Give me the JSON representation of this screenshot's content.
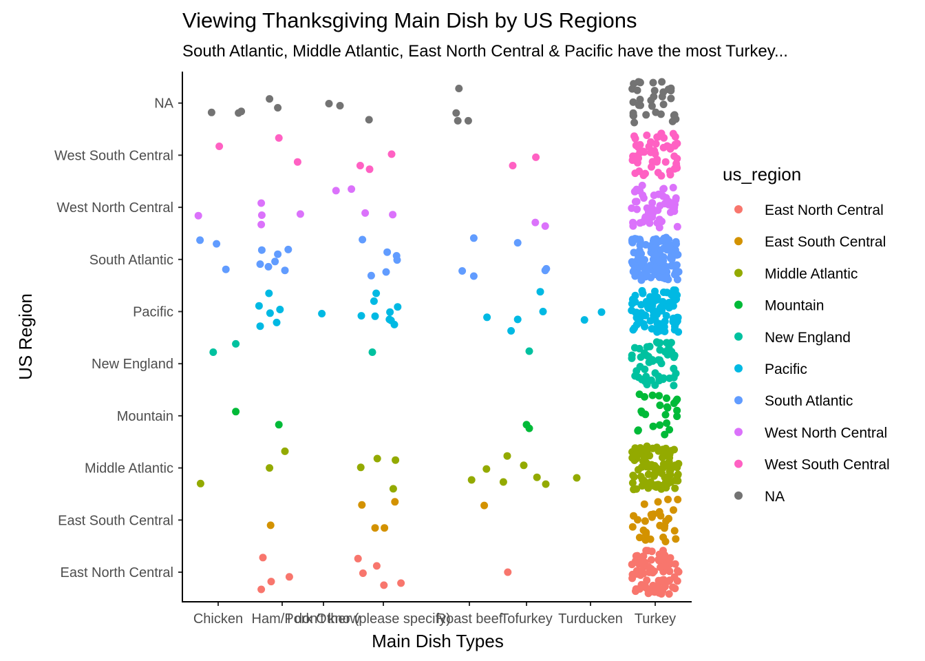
{
  "chart_data": {
    "type": "scatter",
    "title": "Viewing Thanksgiving Main Dish by US Regions",
    "subtitle": "South Atlantic, Middle Atlantic, East North Central & Pacific have the most Turkey...",
    "xlabel": "Main Dish Types",
    "ylabel": "US Region",
    "categories": [
      "Chicken",
      "Ham/Pork",
      "I don't know",
      "Other (please specify)",
      "Roast beef",
      "Tofurkey",
      "Turducken",
      "Turkey"
    ],
    "regions": [
      "East North Central",
      "East South Central",
      "Middle Atlantic",
      "Mountain",
      "New England",
      "Pacific",
      "South Atlantic",
      "West North Central",
      "West South Central",
      "NA"
    ],
    "legend": {
      "title": "us_region",
      "position": "right",
      "entries": [
        "East North Central",
        "East South Central",
        "Middle Atlantic",
        "Mountain",
        "New England",
        "Pacific",
        "South Atlantic",
        "West North Central",
        "West South Central",
        "NA"
      ]
    },
    "colors": {
      "East North Central": "#F8766D",
      "East South Central": "#D39200",
      "Middle Atlantic": "#93AA00",
      "Mountain": "#00BA38",
      "New England": "#00C19F",
      "Pacific": "#00B9E3",
      "South Atlantic": "#619CFF",
      "West North Central": "#DB72FB",
      "West South Central": "#FF61C3",
      "NA": "#737373"
    },
    "jitter": true,
    "grid": false,
    "points": [
      {
        "d": "Chicken",
        "r": "NA",
        "x": -0.12,
        "y": 0.18
      },
      {
        "d": "Chicken",
        "r": "NA",
        "x": 0.37,
        "y": 0.19
      },
      {
        "d": "Chicken",
        "r": "NA",
        "x": 0.42,
        "y": 0.16
      },
      {
        "d": "Ham/Pork",
        "r": "NA",
        "x": -0.23,
        "y": -0.08
      },
      {
        "d": "Ham/Pork",
        "r": "NA",
        "x": -0.08,
        "y": 0.09
      },
      {
        "d": "I don't know",
        "r": "NA",
        "x": 0.1,
        "y": 0.01
      },
      {
        "d": "I don't know",
        "r": "NA",
        "x": 0.3,
        "y": 0.05
      },
      {
        "d": "Other (please specify)",
        "r": "NA",
        "x": -0.26,
        "y": 0.32
      },
      {
        "d": "Roast beef",
        "r": "NA",
        "x": -0.19,
        "y": -0.28
      },
      {
        "d": "Roast beef",
        "r": "NA",
        "x": -0.24,
        "y": 0.19
      },
      {
        "d": "Roast beef",
        "r": "NA",
        "x": -0.21,
        "y": 0.34
      },
      {
        "d": "Roast beef",
        "r": "NA",
        "x": -0.02,
        "y": 0.34
      },
      {
        "d": "Chicken",
        "r": "West South Central",
        "x": 0.02,
        "y": -0.17
      },
      {
        "d": "Ham/Pork",
        "r": "West South Central",
        "x": -0.06,
        "y": -0.33
      },
      {
        "d": "Ham/Pork",
        "r": "West South Central",
        "x": 0.28,
        "y": 0.13
      },
      {
        "d": "Other (please specify)",
        "r": "West South Central",
        "x": -0.42,
        "y": 0.2
      },
      {
        "d": "Other (please specify)",
        "r": "West South Central",
        "x": -0.25,
        "y": 0.27
      },
      {
        "d": "Other (please specify)",
        "r": "West South Central",
        "x": 0.15,
        "y": -0.02
      },
      {
        "d": "Tofurkey",
        "r": "West South Central",
        "x": -0.25,
        "y": 0.2
      },
      {
        "d": "Tofurkey",
        "r": "West South Central",
        "x": 0.17,
        "y": 0.04
      },
      {
        "d": "Chicken",
        "r": "West North Central",
        "x": -0.36,
        "y": 0.16
      },
      {
        "d": "Ham/Pork",
        "r": "West North Central",
        "x": -0.38,
        "y": -0.08
      },
      {
        "d": "Ham/Pork",
        "r": "West North Central",
        "x": -0.37,
        "y": 0.15
      },
      {
        "d": "Ham/Pork",
        "r": "West North Central",
        "x": -0.38,
        "y": 0.33
      },
      {
        "d": "Ham/Pork",
        "r": "West North Central",
        "x": 0.33,
        "y": 0.13
      },
      {
        "d": "Other (please specify)",
        "r": "West North Central",
        "x": -0.86,
        "y": -0.32
      },
      {
        "d": "Other (please specify)",
        "r": "West North Central",
        "x": -0.58,
        "y": -0.35
      },
      {
        "d": "Other (please specify)",
        "r": "West North Central",
        "x": -0.33,
        "y": 0.11
      },
      {
        "d": "Other (please specify)",
        "r": "West North Central",
        "x": 0.17,
        "y": 0.14
      },
      {
        "d": "Tofurkey",
        "r": "West North Central",
        "x": 0.16,
        "y": 0.29
      },
      {
        "d": "Tofurkey",
        "r": "West North Central",
        "x": 0.34,
        "y": 0.36
      },
      {
        "d": "Chicken",
        "r": "South Atlantic",
        "x": -0.33,
        "y": -0.37
      },
      {
        "d": "Chicken",
        "r": "South Atlantic",
        "x": -0.03,
        "y": -0.3
      },
      {
        "d": "Chicken",
        "r": "South Atlantic",
        "x": 0.14,
        "y": 0.19
      },
      {
        "d": "Ham/Pork",
        "r": "South Atlantic",
        "x": -0.37,
        "y": -0.18
      },
      {
        "d": "Ham/Pork",
        "r": "South Atlantic",
        "x": -0.4,
        "y": 0.09
      },
      {
        "d": "Ham/Pork",
        "r": "South Atlantic",
        "x": -0.25,
        "y": 0.14
      },
      {
        "d": "Ham/Pork",
        "r": "South Atlantic",
        "x": -0.08,
        "y": -0.1
      },
      {
        "d": "Ham/Pork",
        "r": "South Atlantic",
        "x": -0.13,
        "y": 0.04
      },
      {
        "d": "Ham/Pork",
        "r": "South Atlantic",
        "x": 0.11,
        "y": -0.19
      },
      {
        "d": "Ham/Pork",
        "r": "South Atlantic",
        "x": 0.05,
        "y": 0.21
      },
      {
        "d": "Other (please specify)",
        "r": "South Atlantic",
        "x": -0.38,
        "y": -0.38
      },
      {
        "d": "Other (please specify)",
        "r": "South Atlantic",
        "x": -0.22,
        "y": 0.31
      },
      {
        "d": "Other (please specify)",
        "r": "South Atlantic",
        "x": 0.07,
        "y": -0.14
      },
      {
        "d": "Other (please specify)",
        "r": "South Atlantic",
        "x": 0.24,
        "y": -0.07
      },
      {
        "d": "Other (please specify)",
        "r": "South Atlantic",
        "x": 0.25,
        "y": 0.01
      },
      {
        "d": "Other (please specify)",
        "r": "South Atlantic",
        "x": 0.05,
        "y": 0.24
      },
      {
        "d": "Roast beef",
        "r": "South Atlantic",
        "x": -0.13,
        "y": 0.22
      },
      {
        "d": "Roast beef",
        "r": "South Atlantic",
        "x": 0.08,
        "y": -0.41
      },
      {
        "d": "Roast beef",
        "r": "South Atlantic",
        "x": 0.08,
        "y": 0.32
      },
      {
        "d": "Tofurkey",
        "r": "South Atlantic",
        "x": -0.16,
        "y": -0.32
      },
      {
        "d": "Tofurkey",
        "r": "South Atlantic",
        "x": 0.34,
        "y": 0.21
      },
      {
        "d": "Tofurkey",
        "r": "South Atlantic",
        "x": 0.36,
        "y": 0.18
      },
      {
        "d": "Ham/Pork",
        "r": "Pacific",
        "x": -0.4,
        "y": 0.28
      },
      {
        "d": "Ham/Pork",
        "r": "Pacific",
        "x": -0.42,
        "y": -0.11
      },
      {
        "d": "Ham/Pork",
        "r": "Pacific",
        "x": -0.24,
        "y": -0.35
      },
      {
        "d": "Ham/Pork",
        "r": "Pacific",
        "x": -0.22,
        "y": 0.03
      },
      {
        "d": "Ham/Pork",
        "r": "Pacific",
        "x": -0.1,
        "y": 0.21
      },
      {
        "d": "Ham/Pork",
        "r": "Pacific",
        "x": -0.04,
        "y": -0.04
      },
      {
        "d": "I don't know",
        "r": "Pacific",
        "x": -0.03,
        "y": 0.04
      },
      {
        "d": "Other (please specify)",
        "r": "Pacific",
        "x": -0.4,
        "y": 0.08
      },
      {
        "d": "Other (please specify)",
        "r": "Pacific",
        "x": -0.15,
        "y": 0.09
      },
      {
        "d": "Other (please specify)",
        "r": "Pacific",
        "x": -0.13,
        "y": -0.35
      },
      {
        "d": "Other (please specify)",
        "r": "Pacific",
        "x": -0.17,
        "y": -0.2
      },
      {
        "d": "Other (please specify)",
        "r": "Pacific",
        "x": 0.11,
        "y": 0.15
      },
      {
        "d": "Other (please specify)",
        "r": "Pacific",
        "x": 0.14,
        "y": 0.17
      },
      {
        "d": "Other (please specify)",
        "r": "Pacific",
        "x": 0.26,
        "y": -0.09
      },
      {
        "d": "Other (please specify)",
        "r": "Pacific",
        "x": 0.12,
        "y": 0.01
      },
      {
        "d": "Other (please specify)",
        "r": "Pacific",
        "x": 0.2,
        "y": 0.25
      },
      {
        "d": "Roast beef",
        "r": "Pacific",
        "x": 0.32,
        "y": 0.11
      },
      {
        "d": "Tofurkey",
        "r": "Pacific",
        "x": -0.16,
        "y": 0.15
      },
      {
        "d": "Tofurkey",
        "r": "Pacific",
        "x": -0.28,
        "y": 0.37
      },
      {
        "d": "Tofurkey",
        "r": "Pacific",
        "x": 0.25,
        "y": -0.38
      },
      {
        "d": "Tofurkey",
        "r": "Pacific",
        "x": 0.3,
        "y": 0.0
      },
      {
        "d": "Turducken",
        "r": "Pacific",
        "x": -0.11,
        "y": 0.16
      },
      {
        "d": "Turducken",
        "r": "Pacific",
        "x": 0.2,
        "y": 0.01
      },
      {
        "d": "Chicken",
        "r": "New England",
        "x": -0.09,
        "y": -0.22
      },
      {
        "d": "Chicken",
        "r": "New England",
        "x": 0.32,
        "y": -0.38
      },
      {
        "d": "Other (please specify)",
        "r": "New England",
        "x": -0.2,
        "y": -0.22
      },
      {
        "d": "Tofurkey",
        "r": "New England",
        "x": 0.05,
        "y": -0.24
      },
      {
        "d": "Chicken",
        "r": "Mountain",
        "x": 0.32,
        "y": -0.08
      },
      {
        "d": "Ham/Pork",
        "r": "Mountain",
        "x": -0.06,
        "y": 0.17
      },
      {
        "d": "Tofurkey",
        "r": "Mountain",
        "x": 0.0,
        "y": 0.17
      },
      {
        "d": "Tofurkey",
        "r": "Mountain",
        "x": 0.05,
        "y": 0.24
      },
      {
        "d": "Chicken",
        "r": "Middle Atlantic",
        "x": -0.32,
        "y": 0.3
      },
      {
        "d": "Ham/Pork",
        "r": "Middle Atlantic",
        "x": -0.23,
        "y": 0.0
      },
      {
        "d": "Ham/Pork",
        "r": "Middle Atlantic",
        "x": 0.05,
        "y": -0.32
      },
      {
        "d": "Other (please specify)",
        "r": "Middle Atlantic",
        "x": -0.41,
        "y": -0.01
      },
      {
        "d": "Other (please specify)",
        "r": "Middle Atlantic",
        "x": -0.11,
        "y": -0.18
      },
      {
        "d": "Other (please specify)",
        "r": "Middle Atlantic",
        "x": 0.18,
        "y": 0.4
      },
      {
        "d": "Other (please specify)",
        "r": "Middle Atlantic",
        "x": 0.22,
        "y": -0.15
      },
      {
        "d": "Roast beef",
        "r": "Middle Atlantic",
        "x": 0.04,
        "y": 0.23
      },
      {
        "d": "Roast beef",
        "r": "Middle Atlantic",
        "x": 0.31,
        "y": 0.02
      },
      {
        "d": "Tofurkey",
        "r": "Middle Atlantic",
        "x": -0.42,
        "y": 0.27
      },
      {
        "d": "Tofurkey",
        "r": "Middle Atlantic",
        "x": -0.35,
        "y": -0.23
      },
      {
        "d": "Tofurkey",
        "r": "Middle Atlantic",
        "x": -0.05,
        "y": -0.05
      },
      {
        "d": "Tofurkey",
        "r": "Middle Atlantic",
        "x": 0.19,
        "y": 0.18
      },
      {
        "d": "Tofurkey",
        "r": "Middle Atlantic",
        "x": 0.35,
        "y": 0.31
      },
      {
        "d": "Turducken",
        "r": "Middle Atlantic",
        "x": -0.25,
        "y": 0.19
      },
      {
        "d": "Ham/Pork",
        "r": "East South Central",
        "x": -0.21,
        "y": 0.1
      },
      {
        "d": "Other (please specify)",
        "r": "East South Central",
        "x": -0.39,
        "y": -0.29
      },
      {
        "d": "Other (please specify)",
        "r": "East South Central",
        "x": -0.15,
        "y": 0.15
      },
      {
        "d": "Other (please specify)",
        "r": "East South Central",
        "x": 0.02,
        "y": 0.15
      },
      {
        "d": "Other (please specify)",
        "r": "East South Central",
        "x": 0.21,
        "y": -0.35
      },
      {
        "d": "Roast beef",
        "r": "East South Central",
        "x": 0.27,
        "y": -0.28
      },
      {
        "d": "Ham/Pork",
        "r": "East North Central",
        "x": -0.38,
        "y": 0.33
      },
      {
        "d": "Ham/Pork",
        "r": "East North Central",
        "x": -0.35,
        "y": -0.28
      },
      {
        "d": "Ham/Pork",
        "r": "East North Central",
        "x": -0.2,
        "y": 0.18
      },
      {
        "d": "Ham/Pork",
        "r": "East North Central",
        "x": 0.13,
        "y": 0.09
      },
      {
        "d": "Other (please specify)",
        "r": "East North Central",
        "x": -0.46,
        "y": -0.26
      },
      {
        "d": "Other (please specify)",
        "r": "East North Central",
        "x": -0.37,
        "y": 0.02
      },
      {
        "d": "Other (please specify)",
        "r": "East North Central",
        "x": -0.12,
        "y": -0.12
      },
      {
        "d": "Other (please specify)",
        "r": "East North Central",
        "x": 0.01,
        "y": 0.25
      },
      {
        "d": "Other (please specify)",
        "r": "East North Central",
        "x": 0.32,
        "y": 0.21
      },
      {
        "d": "Tofurkey",
        "r": "East North Central",
        "x": -0.34,
        "y": 0.0
      }
    ],
    "turkey_cluster_counts": {
      "East North Central": 90,
      "East South Central": 30,
      "Middle Atlantic": 100,
      "Mountain": 24,
      "New England": 50,
      "Pacific": 85,
      "South Atlantic": 120,
      "West North Central": 50,
      "West South Central": 55,
      "NA": 34
    }
  }
}
